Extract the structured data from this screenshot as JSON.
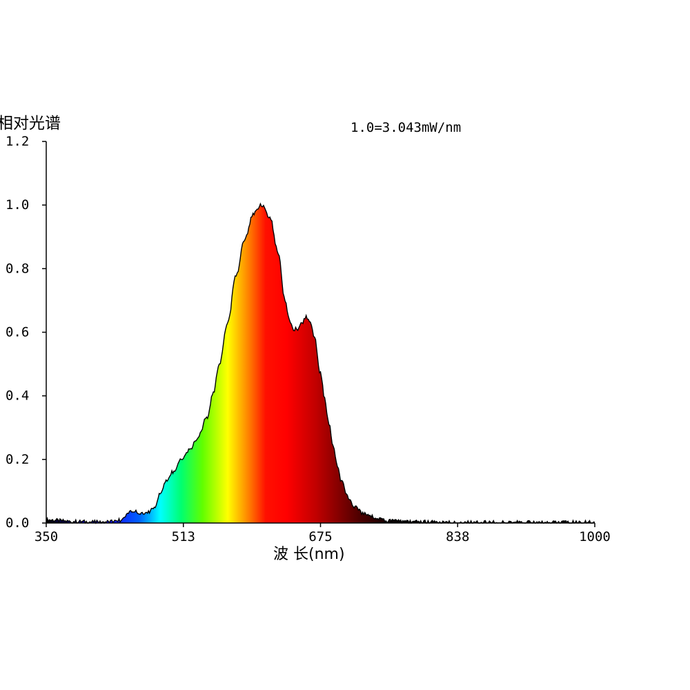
{
  "chart_data": {
    "type": "area",
    "ylabel": "相对光谱",
    "xlabel": "波 长(nm)",
    "annotation": "1.0=3.043mW/nm",
    "xlim": [
      350,
      1000
    ],
    "ylim": [
      0,
      1.2
    ],
    "x_ticks": [
      "350",
      "513",
      "675",
      "838",
      "1000"
    ],
    "y_ticks": [
      "0.0",
      "0.2",
      "0.4",
      "0.6",
      "0.8",
      "1.0",
      "1.2"
    ],
    "grid": false,
    "fill": "spectral wavelength gradient",
    "series": [
      {
        "x": [
          350,
          380,
          410,
          430,
          440,
          445,
          450,
          455,
          460,
          470,
          478,
          485,
          492,
          500,
          510,
          520,
          530,
          540,
          548,
          555,
          565,
          575,
          585,
          595,
          605,
          615,
          625,
          633,
          638,
          643,
          648,
          653,
          658,
          663,
          668,
          675,
          680,
          685,
          690,
          695,
          700,
          708,
          716,
          725,
          735,
          745,
          755,
          770,
          790,
          810,
          840,
          880,
          940,
          1000
        ],
        "values": [
          0.01,
          0.005,
          0.003,
          0.004,
          0.01,
          0.025,
          0.04,
          0.035,
          0.032,
          0.033,
          0.05,
          0.09,
          0.13,
          0.16,
          0.2,
          0.23,
          0.27,
          0.33,
          0.41,
          0.5,
          0.63,
          0.78,
          0.89,
          0.97,
          1.0,
          0.96,
          0.85,
          0.7,
          0.64,
          0.61,
          0.61,
          0.63,
          0.65,
          0.63,
          0.58,
          0.47,
          0.39,
          0.31,
          0.24,
          0.18,
          0.13,
          0.08,
          0.05,
          0.03,
          0.02,
          0.012,
          0.008,
          0.005,
          0.004,
          0.003,
          0.002,
          0.002,
          0.002,
          0.002
        ]
      }
    ],
    "gradient_colors": [
      {
        "wl": 350,
        "color": "#000000"
      },
      {
        "wl": 420,
        "color": "#1a00ff"
      },
      {
        "wl": 460,
        "color": "#0060ff"
      },
      {
        "wl": 485,
        "color": "#00ffff"
      },
      {
        "wl": 510,
        "color": "#00ff70"
      },
      {
        "wl": 535,
        "color": "#60ff00"
      },
      {
        "wl": 565,
        "color": "#ffff00"
      },
      {
        "wl": 590,
        "color": "#ff8000"
      },
      {
        "wl": 610,
        "color": "#ff1000"
      },
      {
        "wl": 635,
        "color": "#ff0000"
      },
      {
        "wl": 670,
        "color": "#c00000"
      },
      {
        "wl": 720,
        "color": "#500000"
      },
      {
        "wl": 760,
        "color": "#080000"
      },
      {
        "wl": 1000,
        "color": "#000000"
      }
    ]
  }
}
